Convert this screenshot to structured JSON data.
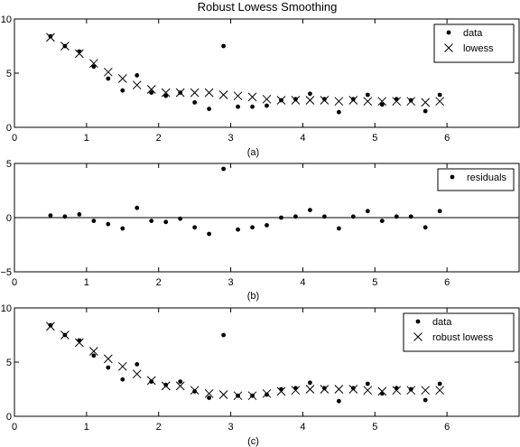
{
  "figure_title": "Robust Lowess Smoothing",
  "chart_data": [
    {
      "type": "scatter",
      "caption": "(a)",
      "xlim": [
        0,
        7
      ],
      "ylim": [
        0,
        10
      ],
      "xticks": [
        0,
        1,
        2,
        3,
        4,
        5,
        6
      ],
      "yticks": [
        0,
        5,
        10
      ],
      "legend_position": "top-right",
      "zero_line": false,
      "series": [
        {
          "name": "data",
          "marker": "dot",
          "x": [
            0.5,
            0.7,
            0.9,
            1.1,
            1.3,
            1.5,
            1.7,
            1.9,
            2.1,
            2.3,
            2.5,
            2.7,
            2.9,
            3.1,
            3.3,
            3.5,
            3.7,
            3.9,
            4.1,
            4.3,
            4.5,
            4.7,
            4.9,
            5.1,
            5.3,
            5.5,
            5.7,
            5.9
          ],
          "y": [
            8.4,
            7.5,
            7.0,
            5.6,
            4.5,
            3.4,
            4.8,
            3.2,
            2.9,
            3.2,
            2.3,
            1.7,
            7.5,
            1.9,
            1.9,
            2.0,
            2.5,
            2.6,
            3.1,
            2.6,
            1.4,
            2.6,
            3.0,
            2.1,
            2.6,
            2.5,
            1.5,
            3.0
          ]
        },
        {
          "name": "lowess",
          "marker": "x",
          "x": [
            0.5,
            0.7,
            0.9,
            1.1,
            1.3,
            1.5,
            1.7,
            1.9,
            2.1,
            2.3,
            2.5,
            2.7,
            2.9,
            3.1,
            3.3,
            3.5,
            3.7,
            3.9,
            4.1,
            4.3,
            4.5,
            4.7,
            4.9,
            5.1,
            5.3,
            5.5,
            5.7,
            5.9
          ],
          "y": [
            8.3,
            7.5,
            6.8,
            5.9,
            5.1,
            4.5,
            3.9,
            3.5,
            3.2,
            3.2,
            3.2,
            3.2,
            3.0,
            2.9,
            2.8,
            2.6,
            2.5,
            2.5,
            2.5,
            2.5,
            2.4,
            2.5,
            2.4,
            2.4,
            2.4,
            2.4,
            2.3,
            2.4
          ]
        }
      ]
    },
    {
      "type": "scatter",
      "caption": "(b)",
      "xlim": [
        0,
        7
      ],
      "ylim": [
        -5,
        5
      ],
      "xticks": [
        0,
        1,
        2,
        3,
        4,
        5,
        6
      ],
      "yticks": [
        -5,
        0,
        5
      ],
      "legend_position": "top-right",
      "zero_line": true,
      "series": [
        {
          "name": "residuals",
          "marker": "dot",
          "x": [
            0.5,
            0.7,
            0.9,
            1.1,
            1.3,
            1.5,
            1.7,
            1.9,
            2.1,
            2.3,
            2.5,
            2.7,
            2.9,
            3.1,
            3.3,
            3.5,
            3.7,
            3.9,
            4.1,
            4.3,
            4.5,
            4.7,
            4.9,
            5.1,
            5.3,
            5.5,
            5.7,
            5.9
          ],
          "y": [
            0.2,
            0.1,
            0.3,
            -0.3,
            -0.6,
            -1.0,
            0.9,
            -0.3,
            -0.4,
            -0.1,
            -0.9,
            -1.5,
            4.5,
            -1.1,
            -0.9,
            -0.7,
            0.0,
            0.1,
            0.7,
            0.1,
            -1.0,
            0.1,
            0.6,
            -0.3,
            0.1,
            0.1,
            -0.9,
            0.6
          ]
        }
      ]
    },
    {
      "type": "scatter",
      "caption": "(c)",
      "xlim": [
        0,
        7
      ],
      "ylim": [
        0,
        10
      ],
      "xticks": [
        0,
        1,
        2,
        3,
        4,
        5,
        6
      ],
      "yticks": [
        0,
        5,
        10
      ],
      "legend_position": "top-right",
      "zero_line": false,
      "series": [
        {
          "name": "data",
          "marker": "dot",
          "x": [
            0.5,
            0.7,
            0.9,
            1.1,
            1.3,
            1.5,
            1.7,
            1.9,
            2.1,
            2.3,
            2.5,
            2.7,
            2.9,
            3.1,
            3.3,
            3.5,
            3.7,
            3.9,
            4.1,
            4.3,
            4.5,
            4.7,
            4.9,
            5.1,
            5.3,
            5.5,
            5.7,
            5.9
          ],
          "y": [
            8.4,
            7.5,
            7.0,
            5.6,
            4.5,
            3.4,
            4.8,
            3.2,
            2.9,
            3.2,
            2.3,
            1.7,
            7.5,
            1.9,
            1.9,
            2.0,
            2.5,
            2.6,
            3.1,
            2.6,
            1.4,
            2.6,
            3.0,
            2.1,
            2.6,
            2.5,
            1.5,
            3.0
          ]
        },
        {
          "name": "robust lowess",
          "marker": "x",
          "x": [
            0.5,
            0.7,
            0.9,
            1.1,
            1.3,
            1.5,
            1.7,
            1.9,
            2.1,
            2.3,
            2.5,
            2.7,
            2.9,
            3.1,
            3.3,
            3.5,
            3.7,
            3.9,
            4.1,
            4.3,
            4.5,
            4.7,
            4.9,
            5.1,
            5.3,
            5.5,
            5.7,
            5.9
          ],
          "y": [
            8.3,
            7.5,
            6.8,
            6.0,
            5.3,
            4.6,
            3.9,
            3.3,
            2.8,
            2.8,
            2.4,
            2.1,
            2.0,
            1.9,
            1.9,
            2.1,
            2.3,
            2.4,
            2.5,
            2.5,
            2.5,
            2.5,
            2.4,
            2.3,
            2.4,
            2.4,
            2.4,
            2.4
          ]
        }
      ]
    }
  ]
}
